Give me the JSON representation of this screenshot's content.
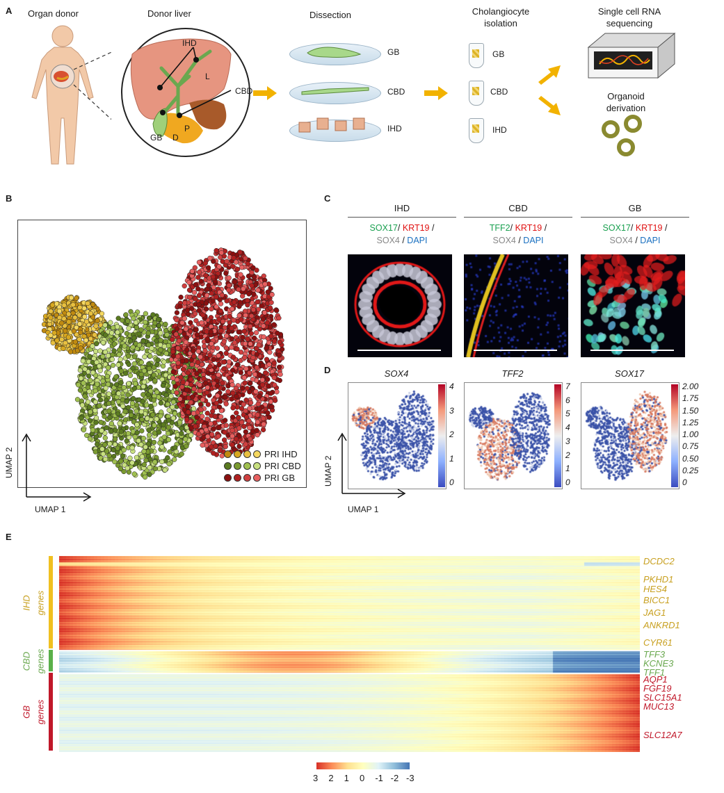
{
  "panels": {
    "a": "A",
    "b": "B",
    "c": "C",
    "d": "D",
    "e": "E"
  },
  "panel_a": {
    "organ_donor": "Organ donor",
    "donor_liver": "Donor liver",
    "dissection": "Dissection",
    "cholangiocyte_isolation_1": "Cholangiocyte",
    "cholangiocyte_isolation_2": "isolation",
    "scrnaseq_1": "Single cell RNA",
    "scrnaseq_2": "sequencing",
    "organoid_1": "Organoid",
    "organoid_2": "derivation",
    "liver_labels": {
      "ihd": "IHD",
      "l": "L",
      "cbd": "CBD",
      "gb": "GB",
      "d": "D",
      "p": "P"
    },
    "dish_labels": [
      "GB",
      "CBD",
      "IHD"
    ],
    "tube_labels": [
      "GB",
      "CBD",
      "IHD"
    ]
  },
  "panel_b": {
    "legend": [
      "PRI IHD",
      "PRI CBD",
      "PRI GB"
    ],
    "legend_colors": {
      "ihd": [
        "#c08a10",
        "#d8a820",
        "#e8c040",
        "#f5d860"
      ],
      "cbd": [
        "#5a7a20",
        "#7a9a30",
        "#a0c050",
        "#c8e080"
      ],
      "gb": [
        "#8a1010",
        "#b02020",
        "#d04040",
        "#e86060"
      ]
    },
    "ylabel": "UMAP 2",
    "xlabel": "UMAP 1"
  },
  "panel_c": {
    "columns": [
      {
        "title": "IHD",
        "stain": [
          [
            "SOX17",
            "#1aa050"
          ],
          [
            "/ ",
            "#1a1a1a"
          ],
          [
            "KRT19",
            "#e01010"
          ],
          [
            " /",
            "#1a1a1a"
          ]
        ],
        "stain2": [
          [
            "SOX4",
            "#888888"
          ],
          [
            " / ",
            "#1a1a1a"
          ],
          [
            "DAPI",
            "#1a70c0"
          ]
        ]
      },
      {
        "title": "CBD",
        "stain": [
          [
            "TFF2",
            "#1aa050"
          ],
          [
            "/ ",
            "#1a1a1a"
          ],
          [
            "KRT19",
            "#e01010"
          ],
          [
            " /",
            "#1a1a1a"
          ]
        ],
        "stain2": [
          [
            "SOX4",
            "#888888"
          ],
          [
            " / ",
            "#1a1a1a"
          ],
          [
            "DAPI",
            "#1a70c0"
          ]
        ]
      },
      {
        "title": "GB",
        "stain": [
          [
            "SOX17",
            "#1aa050"
          ],
          [
            "/ ",
            "#1a1a1a"
          ],
          [
            "KRT19",
            "#e01010"
          ],
          [
            " /",
            "#1a1a1a"
          ]
        ],
        "stain2": [
          [
            "SOX4",
            "#888888"
          ],
          [
            " / ",
            "#1a1a1a"
          ],
          [
            "DAPI",
            "#1a70c0"
          ]
        ]
      }
    ]
  },
  "panel_d": {
    "plots": [
      {
        "gene": "SOX4",
        "ticks": [
          "4",
          "3",
          "2",
          "1",
          "0"
        ]
      },
      {
        "gene": "TFF2",
        "ticks": [
          "7",
          "6",
          "5",
          "4",
          "3",
          "2",
          "1",
          "0"
        ]
      },
      {
        "gene": "SOX17",
        "ticks": [
          "2.00",
          "1.75",
          "1.50",
          "1.25",
          "1.00",
          "0.75",
          "0.50",
          "0.25",
          "0"
        ]
      }
    ],
    "ylabel": "UMAP 2",
    "xlabel": "UMAP 1"
  },
  "panel_e": {
    "groups": [
      {
        "label": "IHD",
        "label2": "genes",
        "color": "#c8a020",
        "bar": "#f0c020"
      },
      {
        "label": "CBD",
        "label2": "genes",
        "color": "#6aa84f",
        "bar": "#5ab04a"
      },
      {
        "label": "GB",
        "label2": "genes",
        "color": "#c0182a",
        "bar": "#c0182a"
      }
    ],
    "genes": [
      {
        "name": "DCDC2",
        "group": 0
      },
      {
        "name": "PKHD1",
        "group": 0
      },
      {
        "name": "HES4",
        "group": 0
      },
      {
        "name": "BICC1",
        "group": 0
      },
      {
        "name": "JAG1",
        "group": 0
      },
      {
        "name": "ANKRD1",
        "group": 0
      },
      {
        "name": "CYR61",
        "group": 0
      },
      {
        "name": "TFF3",
        "group": 1
      },
      {
        "name": "KCNE3",
        "group": 1
      },
      {
        "name": "TFF1",
        "group": 1
      },
      {
        "name": "AQP1",
        "group": 2
      },
      {
        "name": "FGF19",
        "group": 2
      },
      {
        "name": "SLC15A1",
        "group": 2
      },
      {
        "name": "MUC13",
        "group": 2
      },
      {
        "name": "SLC12A7",
        "group": 2
      }
    ],
    "colorbar_ticks": [
      "3",
      "2",
      "1",
      "0",
      "-1",
      "-2",
      "-3"
    ]
  }
}
